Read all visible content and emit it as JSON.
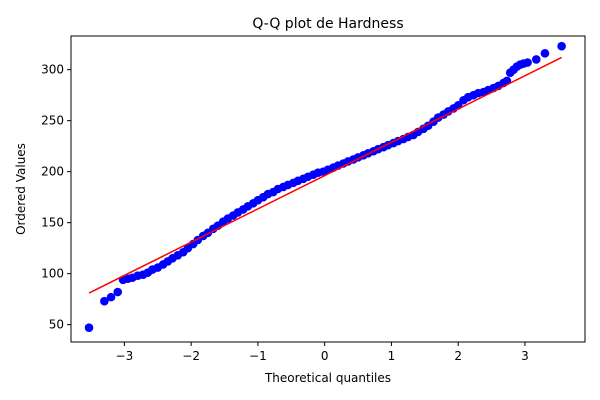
{
  "chart_data": {
    "type": "scatter",
    "title": "Q-Q plot de Hardness",
    "xlabel": "Theoretical quantiles",
    "ylabel": "Ordered Values",
    "xlim": [
      -3.8,
      3.9
    ],
    "ylim": [
      33,
      333
    ],
    "x_ticks": [
      -3,
      -2,
      -1,
      0,
      1,
      2,
      3
    ],
    "y_ticks": [
      50,
      100,
      150,
      200,
      250,
      300
    ],
    "grid": false,
    "legend": "none",
    "colors": {
      "points": "#0000ff",
      "fit_line": "#ff0000"
    },
    "fit_line": {
      "x": [
        -3.53,
        3.55
      ],
      "y": [
        81,
        312
      ]
    },
    "series": [
      {
        "type": "scatter",
        "x": [
          -3.53,
          -3.3,
          -3.2,
          -3.1,
          -3.02,
          -2.95,
          -2.88,
          -2.8,
          -2.72,
          -2.65,
          -2.58,
          -2.5,
          -2.42,
          -2.35,
          -2.28,
          -2.2,
          -2.12,
          -2.05,
          -1.97,
          -1.9,
          -1.82,
          -1.75,
          -1.67,
          -1.6,
          -1.52,
          -1.45,
          -1.37,
          -1.3,
          -1.22,
          -1.15,
          -1.07,
          -1.0,
          -0.92,
          -0.85,
          -0.77,
          -0.7,
          -0.62,
          -0.55,
          -0.47,
          -0.4,
          -0.32,
          -0.25,
          -0.17,
          -0.1,
          -0.02,
          0.05,
          0.13,
          0.2,
          0.28,
          0.35,
          0.43,
          0.5,
          0.58,
          0.65,
          0.73,
          0.8,
          0.88,
          0.95,
          1.03,
          1.1,
          1.18,
          1.25,
          1.33,
          1.4,
          1.48,
          1.55,
          1.63,
          1.7,
          1.78,
          1.85,
          1.93,
          2.0,
          2.08,
          2.15,
          2.23,
          2.3,
          2.38,
          2.45,
          2.53,
          2.6,
          2.68,
          2.73,
          2.78,
          2.83,
          2.88,
          2.93,
          2.98,
          3.04,
          3.17,
          3.3,
          3.55
        ],
        "y": [
          47,
          73,
          77,
          82,
          94,
          95,
          96,
          98,
          99,
          101,
          104,
          106,
          109,
          112,
          115,
          118,
          121,
          125,
          129,
          133,
          137,
          140,
          144,
          147,
          151,
          154,
          157,
          160,
          163,
          166,
          169,
          172,
          175,
          178,
          180,
          183,
          185,
          187,
          189,
          191,
          193,
          195,
          197,
          199,
          200,
          202,
          204,
          206,
          208,
          210,
          212,
          214,
          216,
          218,
          220,
          222,
          224,
          226,
          228,
          230,
          232,
          234,
          236,
          239,
          242,
          245,
          249,
          253,
          256,
          259,
          262,
          265,
          270,
          273,
          275,
          277,
          278,
          280,
          282,
          284,
          287,
          289,
          297,
          300,
          303,
          305,
          306,
          307,
          310,
          316,
          323
        ]
      }
    ]
  }
}
